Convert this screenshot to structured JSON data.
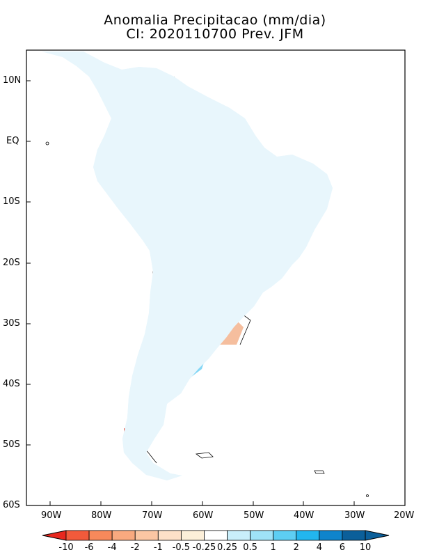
{
  "title_line1": "Anomalia Precipitacao (mm/dia)",
  "title_line2": "CI: 2020110700 Prev. JFM",
  "lat_labels": [
    "10N",
    "EQ",
    "10S",
    "20S",
    "30S",
    "40S",
    "50S",
    "60S"
  ],
  "lon_labels": [
    "90W",
    "80W",
    "70W",
    "60W",
    "50W",
    "40W",
    "30W",
    "20W"
  ],
  "colorbar": {
    "labels": [
      "-10",
      "-6",
      "-4",
      "-2",
      "-1",
      "-0.5",
      "-0.25",
      "0.25",
      "0.5",
      "1",
      "2",
      "4",
      "6",
      "10"
    ],
    "colors": [
      "#e8281f",
      "#f25a3b",
      "#f7895b",
      "#f9a97f",
      "#fbc6a3",
      "#fde0c8",
      "#fcefd9",
      "#ffffff",
      "#c9eefa",
      "#9fe2f7",
      "#5dcef3",
      "#22b6ee",
      "#0f84cc",
      "#0b5f9a"
    ]
  },
  "map": {
    "land_base_color": "#e8f6fc",
    "wet_color": "#7fd6f5",
    "dry_color": "#f3b48f",
    "extreme_dry_color": "#e23b2a"
  }
}
